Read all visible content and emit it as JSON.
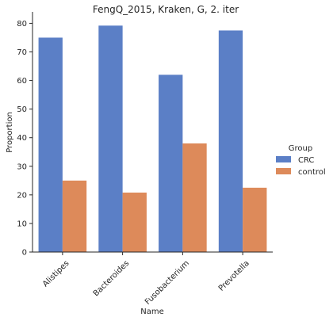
{
  "chart_data": {
    "type": "bar",
    "title": "FengQ_2015, Kraken, G, 2. iter",
    "xlabel": "Name",
    "ylabel": "Proportion",
    "categories": [
      "Alistipes",
      "Bacteroides",
      "Fusobacterium",
      "Prevotella"
    ],
    "series": [
      {
        "name": "CRC",
        "color": "#5b7fc6",
        "values": [
          75.0,
          79.2,
          62.0,
          77.5
        ]
      },
      {
        "name": "control",
        "color": "#dd8a5a",
        "values": [
          25.0,
          20.8,
          38.0,
          22.5
        ]
      }
    ],
    "ylim": [
      0,
      84
    ],
    "yticks": [
      0,
      10,
      20,
      30,
      40,
      50,
      60,
      70,
      80
    ],
    "legend": {
      "title": "Group",
      "placement": "right"
    },
    "grid": false
  }
}
